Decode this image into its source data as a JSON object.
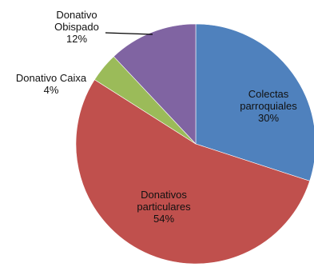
{
  "chart_data": {
    "type": "pie",
    "slices": [
      {
        "label": "Colectas parroquiales",
        "label_lines": [
          "Colectas",
          "parroquiales"
        ],
        "percent_label": "30%",
        "value": 30,
        "color": "#4f81bd"
      },
      {
        "label": "Donativos particulares",
        "label_lines": [
          "Donativos",
          "particulares"
        ],
        "percent_label": "54%",
        "value": 54,
        "color": "#c0504d"
      },
      {
        "label": "Donativo Caixa",
        "label_lines": [
          "Donativo Caixa"
        ],
        "percent_label": "4%",
        "value": 4,
        "color": "#9bbb59"
      },
      {
        "label": "Donativo Obispado",
        "label_lines": [
          "Donativo",
          "Obispado"
        ],
        "percent_label": "12%",
        "value": 12,
        "color": "#8064a2"
      }
    ],
    "title": "",
    "legend": "none",
    "start_angle": "12 o'clock, clockwise"
  }
}
